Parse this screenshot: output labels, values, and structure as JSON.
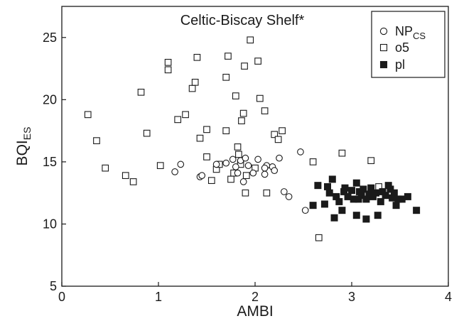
{
  "chart_data": {
    "type": "scatter",
    "title": "Celtic-Biscay Shelf*",
    "xlabel": "AMBI",
    "ylabel": "BQI",
    "ylabel_sub": "ES",
    "xlim": [
      0,
      4
    ],
    "ylim": [
      5,
      27.5
    ],
    "xticks": [
      "0",
      "1",
      "2",
      "3",
      "4"
    ],
    "yticks": [
      "5",
      "10",
      "15",
      "20",
      "25"
    ],
    "grid": false,
    "legend_position": "top-right",
    "series": [
      {
        "name": "NP",
        "name_sub": "CS",
        "marker": "open-circle",
        "color": "#1a1a1a",
        "points": [
          [
            1.17,
            14.2
          ],
          [
            1.23,
            14.8
          ],
          [
            1.43,
            13.8
          ],
          [
            1.45,
            13.9
          ],
          [
            1.6,
            14.8
          ],
          [
            1.7,
            14.9
          ],
          [
            1.77,
            15.2
          ],
          [
            1.8,
            14.6
          ],
          [
            1.82,
            14.1
          ],
          [
            1.85,
            15.1
          ],
          [
            1.88,
            13.4
          ],
          [
            1.9,
            15.3
          ],
          [
            1.93,
            14.7
          ],
          [
            1.98,
            14.1
          ],
          [
            2.03,
            15.2
          ],
          [
            2.1,
            14.0
          ],
          [
            2.12,
            14.7
          ],
          [
            2.18,
            14.6
          ],
          [
            2.2,
            14.3
          ],
          [
            2.25,
            15.3
          ],
          [
            2.3,
            12.6
          ],
          [
            2.35,
            12.2
          ],
          [
            2.47,
            15.8
          ],
          [
            2.52,
            11.1
          ],
          [
            2.1,
            14.5
          ]
        ]
      },
      {
        "name": "o5",
        "marker": "open-square",
        "color": "#1a1a1a",
        "points": [
          [
            0.27,
            18.8
          ],
          [
            0.36,
            16.7
          ],
          [
            0.45,
            14.5
          ],
          [
            0.66,
            13.9
          ],
          [
            0.74,
            13.4
          ],
          [
            0.82,
            20.6
          ],
          [
            0.88,
            17.3
          ],
          [
            1.02,
            14.7
          ],
          [
            1.1,
            23.0
          ],
          [
            1.1,
            22.4
          ],
          [
            1.2,
            18.4
          ],
          [
            1.28,
            18.8
          ],
          [
            1.35,
            20.9
          ],
          [
            1.38,
            21.4
          ],
          [
            1.4,
            23.4
          ],
          [
            1.43,
            16.9
          ],
          [
            1.5,
            15.4
          ],
          [
            1.5,
            17.6
          ],
          [
            1.55,
            13.5
          ],
          [
            1.6,
            14.4
          ],
          [
            1.63,
            14.8
          ],
          [
            1.7,
            21.8
          ],
          [
            1.7,
            17.5
          ],
          [
            1.72,
            23.5
          ],
          [
            1.75,
            13.6
          ],
          [
            1.78,
            14.1
          ],
          [
            1.8,
            20.3
          ],
          [
            1.82,
            16.2
          ],
          [
            1.83,
            15.6
          ],
          [
            1.85,
            14.8
          ],
          [
            1.86,
            18.3
          ],
          [
            1.88,
            18.9
          ],
          [
            1.89,
            22.7
          ],
          [
            1.9,
            12.5
          ],
          [
            1.91,
            13.9
          ],
          [
            1.95,
            24.8
          ],
          [
            2.0,
            14.5
          ],
          [
            2.03,
            23.1
          ],
          [
            2.05,
            20.1
          ],
          [
            2.1,
            19.1
          ],
          [
            2.12,
            12.5
          ],
          [
            2.2,
            17.2
          ],
          [
            2.24,
            16.8
          ],
          [
            2.28,
            17.5
          ],
          [
            2.6,
            15.0
          ],
          [
            2.66,
            8.9
          ],
          [
            2.9,
            15.7
          ],
          [
            3.2,
            15.1
          ],
          [
            3.28,
            13.0
          ]
        ]
      },
      {
        "name": "pl",
        "marker": "filled-square",
        "color": "#1a1a1a",
        "points": [
          [
            2.6,
            11.5
          ],
          [
            2.65,
            13.1
          ],
          [
            2.72,
            11.6
          ],
          [
            2.75,
            13.0
          ],
          [
            2.77,
            12.5
          ],
          [
            2.8,
            13.6
          ],
          [
            2.82,
            10.5
          ],
          [
            2.84,
            12.2
          ],
          [
            2.87,
            11.8
          ],
          [
            2.9,
            11.1
          ],
          [
            2.92,
            12.6
          ],
          [
            2.96,
            12.2
          ],
          [
            3.0,
            12.7
          ],
          [
            3.02,
            12.0
          ],
          [
            3.05,
            13.3
          ],
          [
            3.05,
            10.7
          ],
          [
            3.08,
            12.6
          ],
          [
            3.1,
            12.3
          ],
          [
            3.12,
            12.8
          ],
          [
            3.15,
            10.4
          ],
          [
            3.15,
            12.0
          ],
          [
            3.18,
            12.4
          ],
          [
            3.2,
            12.9
          ],
          [
            3.22,
            12.2
          ],
          [
            3.25,
            12.5
          ],
          [
            3.27,
            10.7
          ],
          [
            3.3,
            11.8
          ],
          [
            3.32,
            12.6
          ],
          [
            3.35,
            12.3
          ],
          [
            3.38,
            13.1
          ],
          [
            3.4,
            12.8
          ],
          [
            3.42,
            12.1
          ],
          [
            3.44,
            12.5
          ],
          [
            3.46,
            11.5
          ],
          [
            3.48,
            12.0
          ],
          [
            3.52,
            12.0
          ],
          [
            3.58,
            12.2
          ],
          [
            3.67,
            11.1
          ],
          [
            3.07,
            12.0
          ],
          [
            2.93,
            12.9
          ]
        ]
      }
    ]
  }
}
